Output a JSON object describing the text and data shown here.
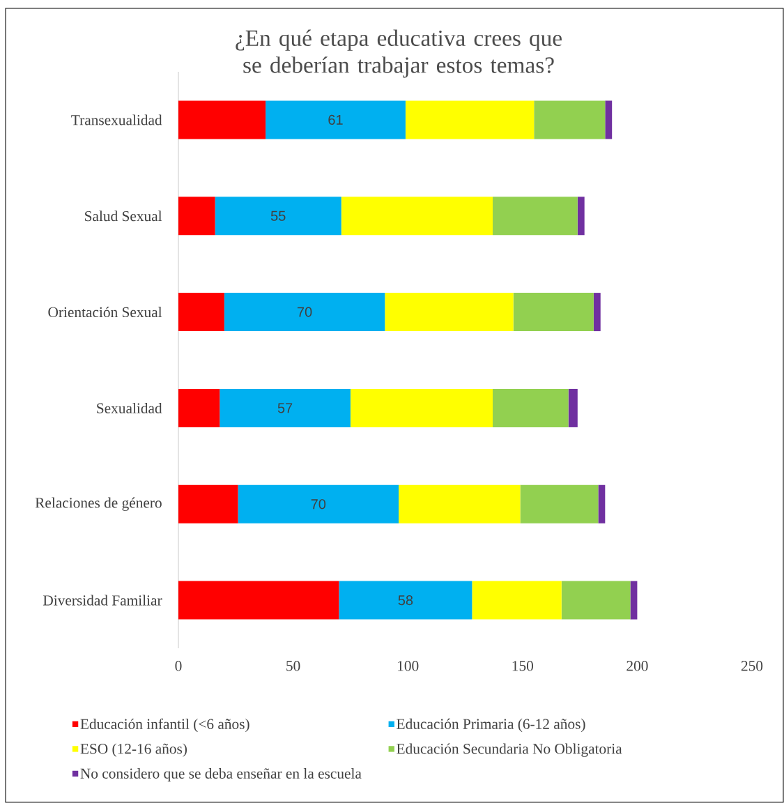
{
  "chart_data": {
    "type": "bar",
    "orientation": "horizontal",
    "stacked": true,
    "title": "¿En qué etapa educativa crees que se deberían trabajar estos temas?",
    "categories": [
      "Transexualidad",
      "Salud Sexual",
      "Orientación Sexual",
      "Sexualidad",
      "Relaciones de género",
      "Diversidad Familiar"
    ],
    "series": [
      {
        "name": "Educación infantil (<6 años)",
        "color": "#ff0000",
        "values": [
          38,
          16,
          20,
          18,
          26,
          70
        ]
      },
      {
        "name": "Educación Primaria (6-12 años)",
        "color": "#00b0f0",
        "values": [
          61,
          55,
          70,
          57,
          70,
          58
        ],
        "value_labels": [
          "61",
          "55",
          "70",
          "57",
          "70",
          "58"
        ]
      },
      {
        "name": "ESO (12-16 años)",
        "color": "#ffff00",
        "values": [
          56,
          66,
          56,
          62,
          53,
          39
        ]
      },
      {
        "name": "Educación Secundaria No Obligatoria",
        "color": "#92d050",
        "values": [
          31,
          37,
          35,
          33,
          34,
          30
        ]
      },
      {
        "name": "No considero que se deba enseñar en la escuela",
        "color": "#7030a0",
        "values": [
          3,
          3,
          3,
          4,
          3,
          3
        ]
      }
    ],
    "xlim": [
      0,
      250
    ],
    "xticks": [
      0,
      50,
      100,
      150,
      200,
      250
    ],
    "grid": false,
    "legend": "bottom"
  }
}
